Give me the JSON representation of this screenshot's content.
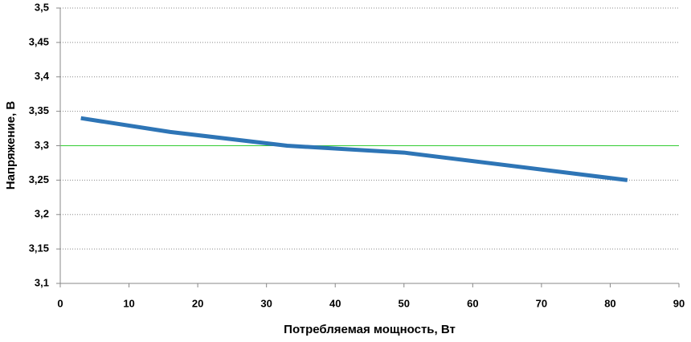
{
  "chart_data": {
    "type": "line",
    "x_label": "Потребляемая мощность, Вт",
    "y_label": "Напряжение, В",
    "xlim": [
      0,
      90
    ],
    "xticks": [
      0,
      10,
      20,
      30,
      40,
      50,
      60,
      70,
      80,
      90
    ],
    "ylim": [
      3.1,
      3.5
    ],
    "yticks": [
      {
        "value": 3.1,
        "label": "3,1"
      },
      {
        "value": 3.15,
        "label": "3,15"
      },
      {
        "value": 3.2,
        "label": "3,2"
      },
      {
        "value": 3.25,
        "label": "3,25"
      },
      {
        "value": 3.3,
        "label": "3,3"
      },
      {
        "value": 3.35,
        "label": "3,35"
      },
      {
        "value": 3.4,
        "label": "3,4"
      },
      {
        "value": 3.45,
        "label": "3,45"
      },
      {
        "value": 3.5,
        "label": "3,5"
      }
    ],
    "grid": true,
    "reference_line": {
      "value": 3.3,
      "color": "#33cc33"
    },
    "series": [
      {
        "color": "#2e75b6",
        "x": [
          3,
          16,
          33,
          50,
          82.5
        ],
        "values": [
          3.34,
          3.32,
          3.3,
          3.29,
          3.25
        ]
      }
    ]
  }
}
